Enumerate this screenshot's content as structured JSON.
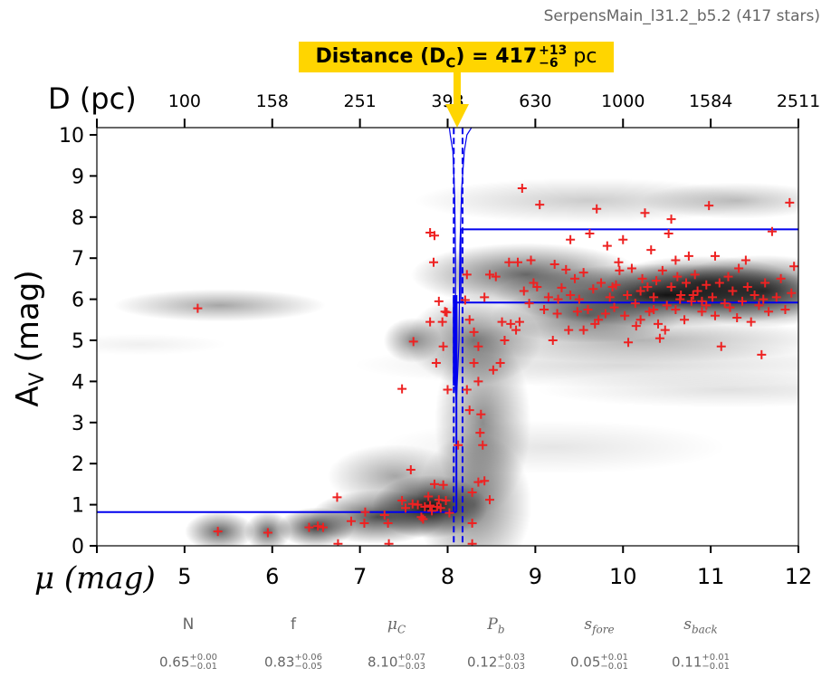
{
  "subtitle": "SerpensMain_l31.2_b5.2 (417 stars)",
  "distance_annotation": {
    "label": "Distance (D",
    "sub": "C",
    "eq": ") = 417",
    "plus": "+13",
    "minus": "−6",
    "unit": "pc",
    "color": "#FFD500"
  },
  "params": [
    {
      "name": "N",
      "value": "0.65",
      "plus": "+0.00",
      "minus": "−0.01"
    },
    {
      "name": "f",
      "value": "0.83",
      "plus": "+0.06",
      "minus": "−0.05"
    },
    {
      "name": "μ",
      "sub": "C",
      "value": "8.10",
      "plus": "+0.07",
      "minus": "−0.03"
    },
    {
      "name": "P",
      "sub": "b",
      "value": "0.12",
      "plus": "+0.03",
      "minus": "−0.03"
    },
    {
      "name": "s",
      "sub": "fore",
      "value": "0.05",
      "plus": "+0.01",
      "minus": "−0.01"
    },
    {
      "name": "s",
      "sub": "back",
      "value": "0.11",
      "plus": "+0.01",
      "minus": "−0.01"
    }
  ],
  "chart_data": {
    "type": "scatter",
    "xlabel": "μ (mag)",
    "ylabel": "A",
    "ylabel_sub": "V",
    "ylabel_unit": " (mag)",
    "top_xlabel": "D (pc)",
    "xlim": [
      4,
      12
    ],
    "ylim": [
      0,
      10.17
    ],
    "xticks": [
      4,
      5,
      6,
      7,
      8,
      9,
      10,
      11,
      12
    ],
    "xtick_labels": [
      "",
      "5",
      "6",
      "7",
      "8",
      "9",
      "10",
      "11",
      "12"
    ],
    "yticks": [
      0,
      1,
      2,
      3,
      4,
      5,
      6,
      7,
      8,
      9,
      10
    ],
    "ytick_labels": [
      "0",
      "1",
      "2",
      "3",
      "4",
      "5",
      "6",
      "7",
      "8",
      "9",
      "10"
    ],
    "top_ticks_mu": [
      4,
      5,
      6,
      7,
      8,
      9,
      10,
      11,
      12
    ],
    "top_tick_labels": [
      "",
      "100",
      "158",
      "251",
      "398",
      "630",
      "1000",
      "1584",
      "2511"
    ],
    "colors": {
      "stars": "#EE2222",
      "model": "#0000EE",
      "arrow": "#FFD500",
      "density": "#000000"
    },
    "best_distance_modulus": 8.1,
    "distance_modulus_bounds": [
      8.07,
      8.17
    ],
    "extinction_model": [
      {
        "mu_from": 4.0,
        "mu_to": 8.1,
        "av": 0.82
      },
      {
        "mu_from": 8.1,
        "mu_to": 12.0,
        "av": 5.92
      },
      {
        "mu_from": 8.15,
        "mu_to": 12.0,
        "av": 7.7
      }
    ],
    "density_blobs": [
      {
        "mu": 5.4,
        "av": 5.85,
        "smu": 0.55,
        "sav": 0.18,
        "w": 0.35
      },
      {
        "mu": 4.5,
        "av": 4.9,
        "smu": 0.45,
        "sav": 0.12,
        "w": 0.06
      },
      {
        "mu": 5.4,
        "av": 0.35,
        "smu": 0.18,
        "sav": 0.22,
        "w": 0.6
      },
      {
        "mu": 5.95,
        "av": 0.35,
        "smu": 0.12,
        "sav": 0.22,
        "w": 0.6
      },
      {
        "mu": 6.5,
        "av": 0.45,
        "smu": 0.2,
        "sav": 0.22,
        "w": 0.75
      },
      {
        "mu": 7.2,
        "av": 0.7,
        "smu": 0.35,
        "sav": 0.3,
        "w": 0.7
      },
      {
        "mu": 7.8,
        "av": 0.95,
        "smu": 0.3,
        "sav": 0.35,
        "w": 0.95
      },
      {
        "mu": 7.4,
        "av": 1.7,
        "smu": 0.35,
        "sav": 0.35,
        "w": 0.35
      },
      {
        "mu": 7.6,
        "av": 5.0,
        "smu": 0.15,
        "sav": 0.25,
        "w": 0.45
      },
      {
        "mu": 8.3,
        "av": 1.0,
        "smu": 0.3,
        "sav": 0.8,
        "w": 0.5
      },
      {
        "mu": 8.4,
        "av": 3.0,
        "smu": 0.25,
        "sav": 1.0,
        "w": 0.45
      },
      {
        "mu": 8.3,
        "av": 5.0,
        "smu": 0.35,
        "sav": 0.5,
        "w": 0.5
      },
      {
        "mu": 8.9,
        "av": 6.6,
        "smu": 0.6,
        "sav": 0.35,
        "w": 0.6
      },
      {
        "mu": 9.6,
        "av": 5.6,
        "smu": 0.5,
        "sav": 0.3,
        "w": 0.55
      },
      {
        "mu": 10.5,
        "av": 6.1,
        "smu": 0.9,
        "sav": 0.35,
        "w": 0.9
      },
      {
        "mu": 10.9,
        "av": 6.4,
        "smu": 0.5,
        "sav": 0.3,
        "w": 0.6
      },
      {
        "mu": 11.6,
        "av": 6.2,
        "smu": 0.5,
        "sav": 0.4,
        "w": 0.7
      },
      {
        "mu": 9.6,
        "av": 8.4,
        "smu": 0.9,
        "sav": 0.25,
        "w": 0.2
      },
      {
        "mu": 11.3,
        "av": 8.4,
        "smu": 0.5,
        "sav": 0.2,
        "w": 0.25
      },
      {
        "mu": 10.0,
        "av": 4.4,
        "smu": 1.4,
        "sav": 0.25,
        "w": 0.15
      },
      {
        "mu": 11.2,
        "av": 3.8,
        "smu": 1.0,
        "sav": 0.2,
        "w": 0.12
      },
      {
        "mu": 9.2,
        "av": 2.4,
        "smu": 0.9,
        "sav": 0.3,
        "w": 0.1
      },
      {
        "mu": 10.2,
        "av": 5.0,
        "smu": 1.0,
        "sav": 0.25,
        "w": 0.3
      }
    ],
    "histogram_steps": [
      {
        "mu": 8.02,
        "av": 10.17
      },
      {
        "mu": 8.03,
        "av": 10.0
      },
      {
        "mu": 8.06,
        "av": 9.6
      },
      {
        "mu": 8.08,
        "av": 8.5
      },
      {
        "mu": 8.09,
        "av": 7.0
      },
      {
        "mu": 8.09,
        "av": 6.0
      },
      {
        "mu": 8.08,
        "av": 4.0
      },
      {
        "mu": 8.1,
        "av": 3.5
      },
      {
        "mu": 8.13,
        "av": 5.0
      },
      {
        "mu": 8.14,
        "av": 7.3
      },
      {
        "mu": 8.16,
        "av": 8.7
      },
      {
        "mu": 8.19,
        "av": 9.6
      },
      {
        "mu": 8.22,
        "av": 10.0
      },
      {
        "mu": 8.27,
        "av": 10.17
      }
    ],
    "stars": [
      [
        5.15,
        5.78
      ],
      [
        5.38,
        0.35
      ],
      [
        5.95,
        0.32
      ],
      [
        6.42,
        0.45
      ],
      [
        6.52,
        0.48
      ],
      [
        6.58,
        0.45
      ],
      [
        6.74,
        1.18
      ],
      [
        6.75,
        0.05
      ],
      [
        6.9,
        0.6
      ],
      [
        7.05,
        0.55
      ],
      [
        7.06,
        0.82
      ],
      [
        7.28,
        0.75
      ],
      [
        7.32,
        0.55
      ],
      [
        7.33,
        0.05
      ],
      [
        7.48,
        1.1
      ],
      [
        7.58,
        1.85
      ],
      [
        7.52,
        0.92
      ],
      [
        7.6,
        1.02
      ],
      [
        7.66,
        1.0
      ],
      [
        7.7,
        0.7
      ],
      [
        7.74,
        0.95
      ],
      [
        7.78,
        1.2
      ],
      [
        7.82,
        0.85
      ],
      [
        7.88,
        0.95
      ],
      [
        7.9,
        1.12
      ],
      [
        7.95,
        1.48
      ],
      [
        7.98,
        1.1
      ],
      [
        8.02,
        0.8
      ],
      [
        7.85,
        1.5
      ],
      [
        7.72,
        0.65
      ],
      [
        7.8,
        0.98
      ],
      [
        7.92,
        0.92
      ],
      [
        7.61,
        4.97
      ],
      [
        7.48,
        3.82
      ],
      [
        7.87,
        4.45
      ],
      [
        7.95,
        4.85
      ],
      [
        7.8,
        5.45
      ],
      [
        7.94,
        5.45
      ],
      [
        7.84,
        6.9
      ],
      [
        7.8,
        7.62
      ],
      [
        7.85,
        7.55
      ],
      [
        7.9,
        5.95
      ],
      [
        7.97,
        5.7
      ],
      [
        7.99,
        5.68
      ],
      [
        8.0,
        3.8
      ],
      [
        8.22,
        6.6
      ],
      [
        8.2,
        5.98
      ],
      [
        8.25,
        5.5
      ],
      [
        8.3,
        5.2
      ],
      [
        8.35,
        4.85
      ],
      [
        8.3,
        4.45
      ],
      [
        8.35,
        4.0
      ],
      [
        8.22,
        3.8
      ],
      [
        8.25,
        3.3
      ],
      [
        8.38,
        3.2
      ],
      [
        8.37,
        2.75
      ],
      [
        8.4,
        2.45
      ],
      [
        8.12,
        2.45
      ],
      [
        8.28,
        1.3
      ],
      [
        8.35,
        1.55
      ],
      [
        8.42,
        1.58
      ],
      [
        8.48,
        1.12
      ],
      [
        8.28,
        0.55
      ],
      [
        8.28,
        0.05
      ],
      [
        8.42,
        6.05
      ],
      [
        8.48,
        6.6
      ],
      [
        8.55,
        6.55
      ],
      [
        8.52,
        4.28
      ],
      [
        8.6,
        4.45
      ],
      [
        8.65,
        5.0
      ],
      [
        8.72,
        5.4
      ],
      [
        8.78,
        5.25
      ],
      [
        8.85,
        8.7
      ],
      [
        8.87,
        6.2
      ],
      [
        8.8,
        6.9
      ],
      [
        8.82,
        5.45
      ],
      [
        8.93,
        5.9
      ],
      [
        8.98,
        6.4
      ],
      [
        9.02,
        6.3
      ],
      [
        9.05,
        8.3
      ],
      [
        9.1,
        5.75
      ],
      [
        9.15,
        6.05
      ],
      [
        9.2,
        5.0
      ],
      [
        9.22,
        6.85
      ],
      [
        9.26,
        6.0
      ],
      [
        9.3,
        6.28
      ],
      [
        9.35,
        6.72
      ],
      [
        9.38,
        5.25
      ],
      [
        9.4,
        6.1
      ],
      [
        9.45,
        6.5
      ],
      [
        9.48,
        5.7
      ],
      [
        9.5,
        6.0
      ],
      [
        9.55,
        6.65
      ],
      [
        9.6,
        5.75
      ],
      [
        9.62,
        7.6
      ],
      [
        9.66,
        6.25
      ],
      [
        9.7,
        8.2
      ],
      [
        9.72,
        5.5
      ],
      [
        9.75,
        6.4
      ],
      [
        9.8,
        5.65
      ],
      [
        9.82,
        7.3
      ],
      [
        9.85,
        6.05
      ],
      [
        9.9,
        5.8
      ],
      [
        9.92,
        6.35
      ],
      [
        9.96,
        6.7
      ],
      [
        10.0,
        7.45
      ],
      [
        10.02,
        5.6
      ],
      [
        10.05,
        6.1
      ],
      [
        10.06,
        4.95
      ],
      [
        10.1,
        6.75
      ],
      [
        10.14,
        5.9
      ],
      [
        10.2,
        5.5
      ],
      [
        10.22,
        6.5
      ],
      [
        10.25,
        8.1
      ],
      [
        10.28,
        6.3
      ],
      [
        10.3,
        5.7
      ],
      [
        10.35,
        6.05
      ],
      [
        10.38,
        6.45
      ],
      [
        10.4,
        5.4
      ],
      [
        10.45,
        6.7
      ],
      [
        10.5,
        5.85
      ],
      [
        10.52,
        7.6
      ],
      [
        10.55,
        6.3
      ],
      [
        10.6,
        5.75
      ],
      [
        10.62,
        6.55
      ],
      [
        10.66,
        6.1
      ],
      [
        10.7,
        5.5
      ],
      [
        10.72,
        6.4
      ],
      [
        10.78,
        5.95
      ],
      [
        10.82,
        6.6
      ],
      [
        10.85,
        6.2
      ],
      [
        10.9,
        5.7
      ],
      [
        10.95,
        6.35
      ],
      [
        10.98,
        8.28
      ],
      [
        11.02,
        6.05
      ],
      [
        11.05,
        5.6
      ],
      [
        11.1,
        6.4
      ],
      [
        11.12,
        4.85
      ],
      [
        11.16,
        5.9
      ],
      [
        11.2,
        6.55
      ],
      [
        11.25,
        6.2
      ],
      [
        11.3,
        5.55
      ],
      [
        11.32,
        6.75
      ],
      [
        11.36,
        5.95
      ],
      [
        11.42,
        6.3
      ],
      [
        11.46,
        5.45
      ],
      [
        11.5,
        6.1
      ],
      [
        11.55,
        5.85
      ],
      [
        11.58,
        4.65
      ],
      [
        11.62,
        6.4
      ],
      [
        11.66,
        5.7
      ],
      [
        11.7,
        7.65
      ],
      [
        11.75,
        6.05
      ],
      [
        11.8,
        6.5
      ],
      [
        11.85,
        5.75
      ],
      [
        11.9,
        8.35
      ],
      [
        11.92,
        6.15
      ],
      [
        11.95,
        6.8
      ],
      [
        10.42,
        5.05
      ],
      [
        10.55,
        7.95
      ],
      [
        10.32,
        7.2
      ],
      [
        9.95,
        6.9
      ],
      [
        10.6,
        6.95
      ],
      [
        10.75,
        7.05
      ],
      [
        9.68,
        5.4
      ],
      [
        10.48,
        5.25
      ],
      [
        10.9,
        5.95
      ],
      [
        11.4,
        6.95
      ],
      [
        11.05,
        7.05
      ],
      [
        10.65,
        6.0
      ],
      [
        10.2,
        6.2
      ],
      [
        9.88,
        6.3
      ],
      [
        10.8,
        6.1
      ],
      [
        11.22,
        5.8
      ],
      [
        9.25,
        5.65
      ],
      [
        8.7,
        6.9
      ],
      [
        8.62,
        5.45
      ],
      [
        9.55,
        5.25
      ],
      [
        10.15,
        5.35
      ],
      [
        10.35,
        5.75
      ],
      [
        10.95,
        5.85
      ],
      [
        11.6,
        6.0
      ],
      [
        8.95,
        6.95
      ],
      [
        9.4,
        7.45
      ]
    ]
  }
}
